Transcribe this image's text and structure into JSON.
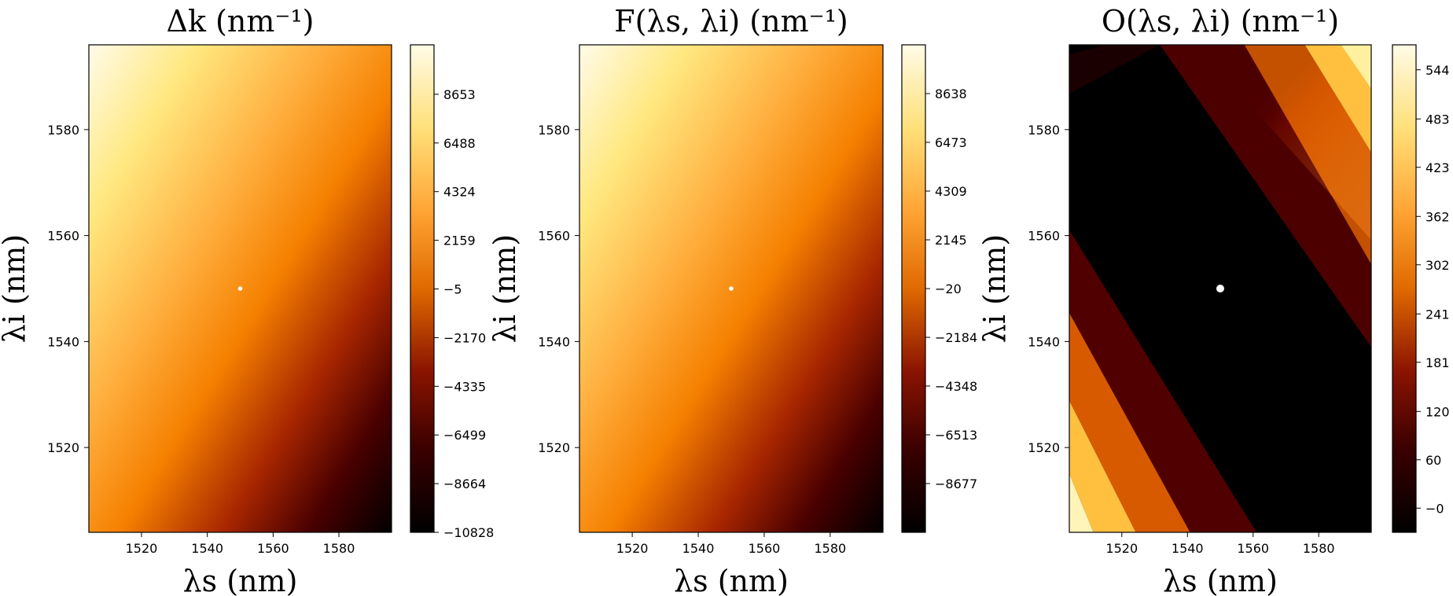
{
  "chart_data": [
    {
      "type": "heatmap",
      "title": "Δk (nm⁻¹)",
      "xlabel": "λs (nm)",
      "ylabel": "λi (nm)",
      "xlim": [
        1504,
        1596
      ],
      "ylim": [
        1504,
        1596
      ],
      "x_ticks": [
        "1520",
        "1540",
        "1560",
        "1580"
      ],
      "y_ticks": [
        "1520",
        "1540",
        "1560",
        "1580"
      ],
      "colormap": "afmhot",
      "pattern": "diagonal-gradient",
      "value_range": [
        -10828,
        10853
      ],
      "colorbar_ticks": [
        "8653",
        "6488",
        "4324",
        "2159",
        "−5",
        "−2170",
        "−4335",
        "−6499",
        "−8664",
        "−10828"
      ],
      "marker": {
        "x": 1550,
        "y": 1550,
        "color": "#ffffff"
      }
    },
    {
      "type": "heatmap",
      "title": "F(λs, λi) (nm⁻¹)",
      "xlabel": "λs (nm)",
      "ylabel": "λi (nm)",
      "xlim": [
        1504,
        1596
      ],
      "ylim": [
        1504,
        1596
      ],
      "x_ticks": [
        "1520",
        "1540",
        "1560",
        "1580"
      ],
      "y_ticks": [
        "1520",
        "1540",
        "1560",
        "1580"
      ],
      "colormap": "afmhot",
      "pattern": "diagonal-gradient",
      "value_range": [
        -10842,
        10803
      ],
      "colorbar_ticks": [
        "8638",
        "6473",
        "4309",
        "2145",
        "−20",
        "−2184",
        "−4348",
        "−6513",
        "−8677"
      ],
      "marker": {
        "x": 1550,
        "y": 1550,
        "color": "#ffffff"
      }
    },
    {
      "type": "heatmap",
      "title": "O(λs, λi) (nm⁻¹)",
      "xlabel": "λs (nm)",
      "ylabel": "λi (nm)",
      "xlim": [
        1504,
        1596
      ],
      "ylim": [
        1504,
        1596
      ],
      "x_ticks": [
        "1520",
        "1540",
        "1560",
        "1580"
      ],
      "y_ticks": [
        "1520",
        "1540",
        "1560",
        "1580"
      ],
      "colormap": "afmhot",
      "pattern": "bands-around-diagonal",
      "value_range": [
        -30,
        575
      ],
      "colorbar_ticks": [
        "544",
        "483",
        "423",
        "362",
        "302",
        "241",
        "181",
        "120",
        "60",
        "−0"
      ],
      "marker": {
        "x": 1550,
        "y": 1550,
        "color": "#ffffff"
      },
      "mask": {
        "from": [
          1540,
          1560
        ],
        "to": [
          1558,
          1540
        ],
        "color": "#000000"
      }
    }
  ],
  "colors": {
    "afmhot_stops": [
      "#000000",
      "#5a0000",
      "#b43200",
      "#ff8c10",
      "#ffd060",
      "#ffffa0",
      "#ffffff"
    ]
  }
}
